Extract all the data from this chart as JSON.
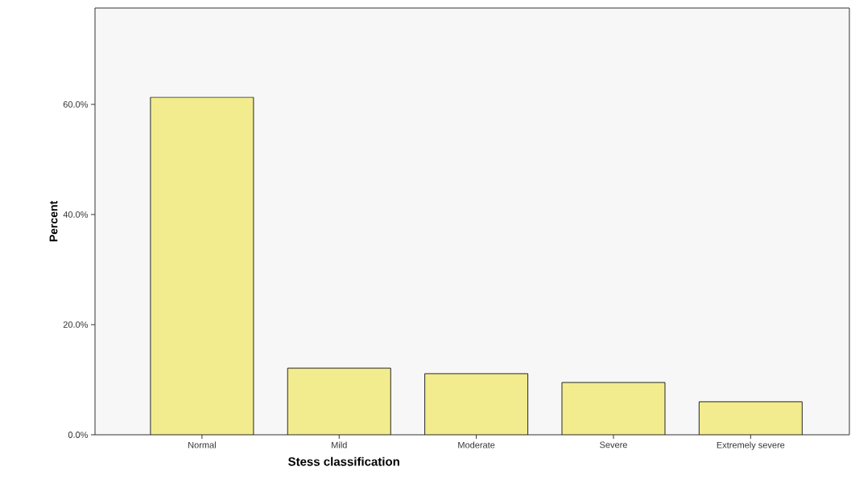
{
  "chart_data": {
    "type": "bar",
    "xlabel": "Stess classification",
    "ylabel": "Percent",
    "categories": [
      "Normal",
      "Mild",
      "Moderate",
      "Severe",
      "Extremely severe"
    ],
    "values": [
      61.3,
      12.1,
      11.1,
      9.5,
      6.0
    ],
    "color": "#f2ec8e",
    "ylim": [
      0,
      77.5
    ],
    "yticks": [
      {
        "value": 0,
        "label": "0.0%"
      },
      {
        "value": 20,
        "label": "20.0%"
      },
      {
        "value": 40,
        "label": "40.0%"
      },
      {
        "value": 60,
        "label": "60.0%"
      }
    ],
    "grid": false
  }
}
